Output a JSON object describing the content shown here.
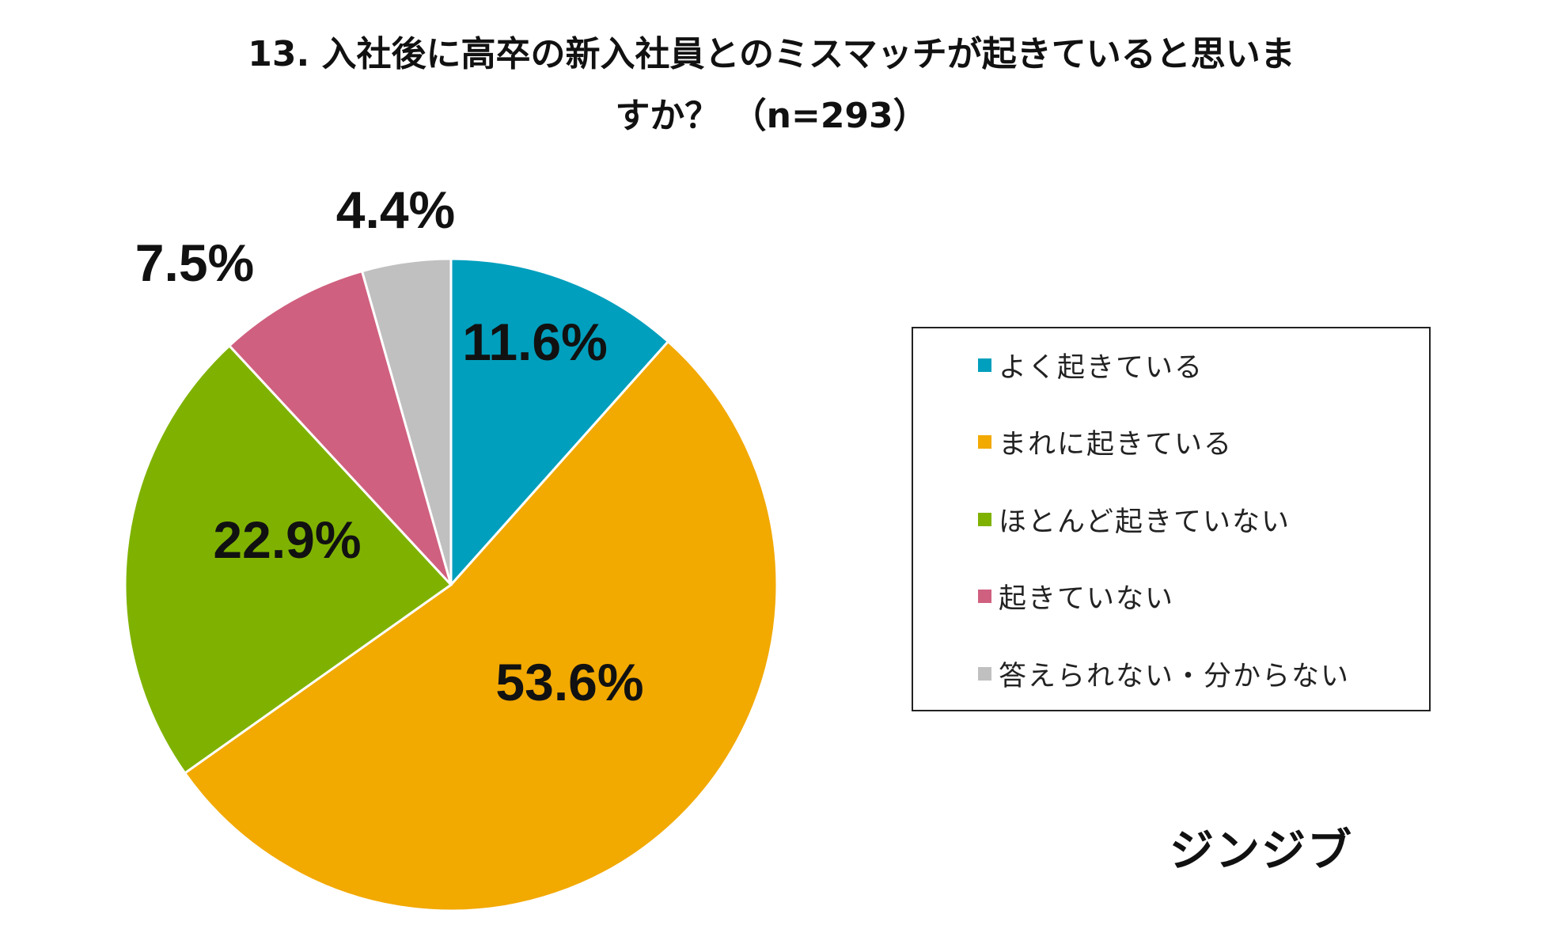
{
  "chart_data": {
    "type": "pie",
    "title_line1": "13. 入社後に高卒の新入社員とのミスマッチが起きていると思いま",
    "title_line2": "すか？ （n=293）",
    "unit": "%",
    "slices": [
      {
        "label": "よく起きている",
        "value": 11.6,
        "display": "11.6%",
        "color": "#009fbd"
      },
      {
        "label": "まれに起きている",
        "value": 53.6,
        "display": "53.6%",
        "color": "#f2a900"
      },
      {
        "label": "ほとんど起きていない",
        "value": 22.9,
        "display": "22.9%",
        "color": "#7fb200"
      },
      {
        "label": "起きていない",
        "value": 7.5,
        "display": "7.5%",
        "color": "#d0607f"
      },
      {
        "label": "答えられない・分からない",
        "value": 4.4,
        "display": "4.4%",
        "color": "#c0c0c0"
      }
    ],
    "legend_position": "right",
    "start_angle": "12-o'clock",
    "direction": "clockwise"
  },
  "brand": {
    "name": "ジンジブ"
  }
}
